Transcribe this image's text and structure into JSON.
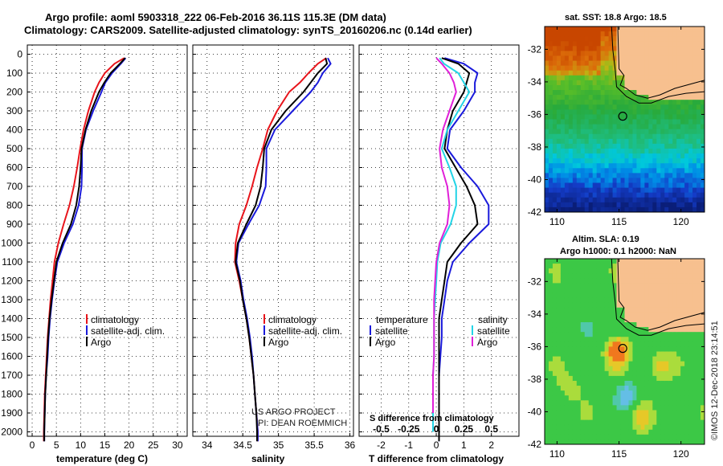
{
  "header": {
    "line1": "Argo profile: aoml 5903318_222 06-Feb-2016 36.11S 115.3E (DM data)",
    "line2": "Climatology: CARS2009. Satellite-adjusted climatology: synTS_20160206.nc (0.14d earlier)"
  },
  "colors": {
    "climatology": "#e8141b",
    "satellite": "#1a1adb",
    "argo": "#000000",
    "sat_salinity": "#22d4e6",
    "argo_salinity": "#e020d8"
  },
  "depth_axis": {
    "ticks": [
      "0",
      "100",
      "200",
      "300",
      "400",
      "500",
      "600",
      "700",
      "800",
      "900",
      "1000",
      "1100",
      "1200",
      "1300",
      "1400",
      "1500",
      "1600",
      "1700",
      "1800",
      "1900",
      "2000"
    ]
  },
  "chart_data": [
    {
      "type": "line",
      "id": "temperature",
      "xlabel": "temperature (deg C)",
      "xlim": [
        -1,
        32
      ],
      "xticks": [
        "0",
        "5",
        "10",
        "15",
        "20",
        "25",
        "30"
      ],
      "ylim": [
        0,
        2070
      ],
      "yreversed": true,
      "legend": [
        "climatology",
        "satellite-adj. clim.",
        "Argo"
      ],
      "series": [
        {
          "name": "climatology",
          "depth": [
            20,
            50,
            100,
            150,
            200,
            300,
            400,
            500,
            600,
            700,
            800,
            900,
            1000,
            1100,
            1200,
            1300,
            1400,
            1500,
            1600,
            1700,
            1800,
            1900,
            2000,
            2050
          ],
          "values": [
            19.0,
            17.0,
            15.0,
            13.8,
            12.9,
            11.6,
            10.6,
            9.9,
            9.3,
            8.6,
            7.7,
            6.5,
            5.4,
            4.6,
            4.2,
            3.8,
            3.5,
            3.2,
            3.0,
            2.8,
            2.6,
            2.5,
            2.4,
            2.4
          ]
        },
        {
          "name": "satellite-adj. clim.",
          "depth": [
            20,
            50,
            100,
            150,
            200,
            300,
            400,
            500,
            600,
            700,
            800,
            900,
            1000,
            1100,
            1200,
            1300,
            1400,
            1500,
            1600,
            1700,
            1800,
            1900,
            2000,
            2050
          ],
          "values": [
            19.3,
            18.3,
            16.5,
            15.1,
            14.3,
            12.6,
            11.1,
            10.3,
            10.3,
            10.2,
            9.6,
            8.4,
            6.6,
            5.2,
            4.6,
            4.1,
            3.7,
            3.4,
            3.2,
            2.9,
            2.7,
            2.6,
            2.5,
            2.5
          ]
        },
        {
          "name": "Argo",
          "depth": [
            20,
            50,
            100,
            150,
            200,
            300,
            400,
            500,
            600,
            700,
            800,
            900,
            1000,
            1100,
            1200,
            1300,
            1400,
            1500,
            1600,
            1700,
            1800,
            1900,
            2000,
            2050
          ],
          "values": [
            19.2,
            18.1,
            16.2,
            14.9,
            13.8,
            12.2,
            11.0,
            10.2,
            10.0,
            9.7,
            9.1,
            8.0,
            6.3,
            5.0,
            4.5,
            4.0,
            3.6,
            3.3,
            3.1,
            2.9,
            2.7,
            2.6,
            2.5,
            2.5
          ]
        }
      ],
      "credit": [
        "US ARGO PROJECT",
        "PI: DEAN ROEMMICH"
      ]
    },
    {
      "type": "line",
      "id": "salinity",
      "xlabel": "salinity",
      "xlim": [
        33.8,
        36.05
      ],
      "xticks": [
        "34",
        "34.5",
        "35",
        "35.5",
        "36"
      ],
      "ylim": [
        0,
        2070
      ],
      "yreversed": true,
      "legend": [
        "climatology",
        "satellite-adj. clim.",
        "Argo"
      ],
      "series": [
        {
          "name": "climatology",
          "depth": [
            20,
            50,
            100,
            150,
            200,
            300,
            400,
            500,
            600,
            700,
            800,
            900,
            1000,
            1100,
            1200,
            1300,
            1400,
            1500,
            1600,
            1700,
            1800,
            1900,
            2000,
            2050
          ],
          "values": [
            35.67,
            35.55,
            35.42,
            35.3,
            35.15,
            34.98,
            34.85,
            34.78,
            34.7,
            34.63,
            34.55,
            34.45,
            34.4,
            34.39,
            34.45,
            34.5,
            34.55,
            34.59,
            34.62,
            34.65,
            34.67,
            34.69,
            34.71,
            34.71
          ]
        },
        {
          "name": "satellite-adj. clim.",
          "depth": [
            20,
            50,
            100,
            150,
            200,
            300,
            400,
            500,
            600,
            700,
            800,
            900,
            1000,
            1100,
            1200,
            1300,
            1400,
            1500,
            1600,
            1700,
            1800,
            1900,
            2000,
            2050
          ],
          "values": [
            35.69,
            35.73,
            35.62,
            35.55,
            35.45,
            35.2,
            34.95,
            34.83,
            34.83,
            34.82,
            34.73,
            34.58,
            34.44,
            34.41,
            34.47,
            34.51,
            34.56,
            34.6,
            34.63,
            34.65,
            34.67,
            34.69,
            34.71,
            34.71
          ]
        },
        {
          "name": "Argo",
          "depth": [
            20,
            50,
            100,
            150,
            200,
            300,
            400,
            500,
            600,
            700,
            800,
            900,
            1000,
            1100,
            1200,
            1300,
            1400,
            1500,
            1600,
            1700,
            1800,
            1900,
            2000,
            2050
          ],
          "values": [
            35.66,
            35.68,
            35.55,
            35.45,
            35.35,
            35.1,
            34.9,
            34.8,
            34.78,
            34.75,
            34.68,
            34.55,
            34.43,
            34.4,
            34.46,
            34.5,
            34.55,
            34.59,
            34.62,
            34.65,
            34.67,
            34.69,
            34.7,
            34.7
          ]
        }
      ]
    },
    {
      "type": "line",
      "id": "difference",
      "xlabel": "T difference from climatology",
      "xlabel2": "S difference from climatology",
      "xlim": [
        -2.8,
        3.0
      ],
      "xticks": [
        "-2",
        "-1",
        "0",
        "1",
        "2"
      ],
      "xticks2": [
        "-0.5",
        "-0.25",
        "0",
        "0.25",
        "0.5"
      ],
      "ylim": [
        0,
        2070
      ],
      "yreversed": true,
      "legend_left_title": "temperature",
      "legend_right_title": "salinity",
      "legend": [
        "satellite",
        "Argo",
        "satellite",
        "Argo"
      ],
      "series": [
        {
          "name": "temperature satellite",
          "depth": [
            20,
            50,
            100,
            150,
            200,
            300,
            400,
            500,
            600,
            700,
            800,
            900,
            1000,
            1100,
            1200,
            1300,
            1400,
            1500,
            1600,
            1700,
            1800,
            1900,
            2000,
            2050
          ],
          "values": [
            0.3,
            1.0,
            1.5,
            1.4,
            1.4,
            1.0,
            0.5,
            0.4,
            0.9,
            1.5,
            1.9,
            1.9,
            1.2,
            0.6,
            0.4,
            0.3,
            0.2,
            0.2,
            0.15,
            0.1,
            0.1,
            0.1,
            0.1,
            0.1
          ]
        },
        {
          "name": "temperature Argo",
          "depth": [
            20,
            50,
            100,
            150,
            200,
            300,
            400,
            500,
            600,
            700,
            800,
            900,
            1000,
            1100,
            1200,
            1300,
            1400,
            1500,
            1600,
            1700,
            1800,
            1900,
            2000,
            2050
          ],
          "values": [
            0.2,
            0.8,
            1.2,
            1.1,
            1.0,
            0.6,
            0.4,
            0.3,
            0.7,
            1.1,
            1.4,
            1.5,
            0.9,
            0.4,
            0.3,
            0.2,
            0.1,
            0.1,
            0.1,
            0.1,
            0.1,
            0.1,
            0.1,
            0.1
          ]
        },
        {
          "name": "salinity satellite",
          "depth": [
            20,
            50,
            100,
            150,
            200,
            300,
            400,
            500,
            600,
            700,
            800,
            900,
            1000,
            1100,
            1200,
            1300,
            1400,
            1500,
            1600,
            1700,
            1800,
            1900,
            2000
          ],
          "values": [
            0.03,
            0.07,
            0.2,
            0.25,
            0.3,
            0.2,
            0.1,
            0.05,
            0.12,
            0.18,
            0.18,
            0.13,
            0.04,
            0.01,
            0.0,
            -0.01,
            -0.02,
            -0.02,
            -0.02,
            -0.03,
            -0.03,
            -0.03,
            -0.03
          ]
        },
        {
          "name": "salinity Argo",
          "depth": [
            20,
            50,
            100,
            150,
            200,
            300,
            400,
            500,
            600,
            700,
            800,
            900,
            1000,
            1100,
            1200,
            1300,
            1400,
            1500,
            1600,
            1700,
            1800,
            1900
          ],
          "values": [
            0.0,
            0.05,
            0.12,
            0.16,
            0.18,
            0.12,
            0.06,
            0.03,
            0.05,
            0.1,
            0.12,
            0.1,
            0.03,
            0.0,
            -0.01,
            -0.02,
            -0.02,
            -0.02,
            -0.02,
            -0.03,
            -0.03,
            -0.03
          ]
        }
      ]
    },
    {
      "type": "heatmap",
      "id": "sst_map",
      "title": "sat. SST: 18.8 Argo: 18.5",
      "xlim": [
        109,
        121.9
      ],
      "ylim": [
        -42,
        -30.6
      ],
      "xticks": [
        "110",
        "115",
        "120"
      ],
      "yticks": [
        "-32",
        "-34",
        "-36",
        "-38",
        "-40",
        "-42"
      ],
      "float_position": {
        "lon": 115.3,
        "lat": -36.11
      }
    },
    {
      "type": "heatmap",
      "id": "sla_map",
      "title": "Altim. SLA: 0.19",
      "subtitle": "Argo h1000: 0.1 h2000: NaN",
      "xlim": [
        109,
        121.9
      ],
      "ylim": [
        -42,
        -30.6
      ],
      "xticks": [
        "110",
        "115",
        "120"
      ],
      "yticks": [
        "-32",
        "-34",
        "-36",
        "-38",
        "-40",
        "-42"
      ],
      "float_position": {
        "lon": 115.3,
        "lat": -36.11
      }
    }
  ],
  "footer": {
    "side_credit": "©IMOS 12-Dec-2018 23:14:51"
  }
}
